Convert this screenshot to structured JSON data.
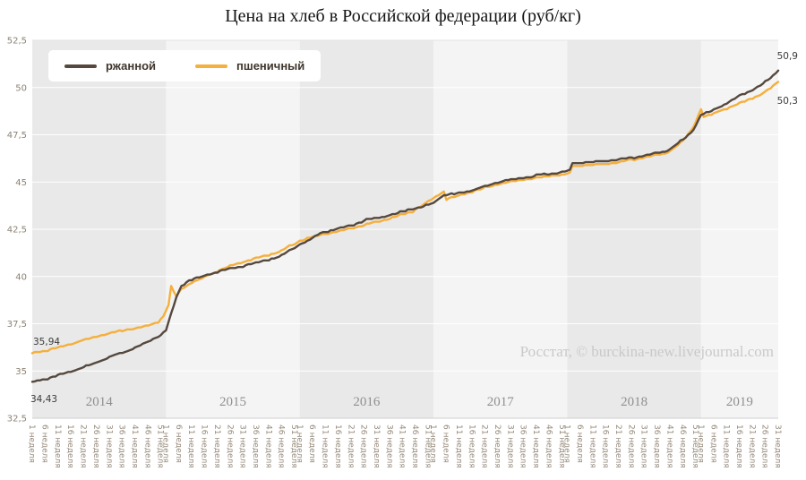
{
  "title": "Цена на хлеб в Российской федерации (руб/кг)",
  "watermark": "Росстат, © burckina-new.livejournal.com",
  "chart_data": {
    "type": "line",
    "title": "Цена на хлеб в Российской федерации (руб/кг)",
    "ylabel": "",
    "xlabel": "",
    "ylim": [
      32.5,
      52.5
    ],
    "y_tick_values": [
      52.5,
      50,
      47.5,
      45,
      42.5,
      40,
      37.5,
      35,
      32.5
    ],
    "y_tick_labels": [
      "52,5",
      "50",
      "47,5",
      "45",
      "42,5",
      "40",
      "37,5",
      "35",
      "32,5"
    ],
    "x_tick_weeks": [
      1,
      6,
      11,
      16,
      21,
      26,
      31,
      36,
      41,
      46,
      51
    ],
    "week_word": "неделя",
    "years": [
      {
        "label": "2014",
        "weeks": 52
      },
      {
        "label": "2015",
        "weeks": 52
      },
      {
        "label": "2016",
        "weeks": 52
      },
      {
        "label": "2017",
        "weeks": 52
      },
      {
        "label": "2018",
        "weeks": 52
      },
      {
        "label": "2019",
        "weeks": 31
      }
    ],
    "band_colors": [
      "#e9e9e9",
      "#f4f4f4"
    ],
    "grid_color": "#ffffff",
    "legend_position": "top-left",
    "series": [
      {
        "name": "ржанной",
        "color": "#55483E",
        "anchors": [
          [
            0,
            34.43
          ],
          [
            6,
            34.6
          ],
          [
            12,
            34.85
          ],
          [
            18,
            35.1
          ],
          [
            24,
            35.4
          ],
          [
            30,
            35.75
          ],
          [
            36,
            36.0
          ],
          [
            42,
            36.35
          ],
          [
            46,
            36.6
          ],
          [
            50,
            36.9
          ],
          [
            52,
            37.15
          ],
          [
            54,
            38.0
          ],
          [
            56,
            38.9
          ],
          [
            58,
            39.5
          ],
          [
            61,
            39.8
          ],
          [
            66,
            40.0
          ],
          [
            72,
            40.25
          ],
          [
            80,
            40.5
          ],
          [
            88,
            40.75
          ],
          [
            96,
            41.05
          ],
          [
            104,
            41.7
          ],
          [
            108,
            41.95
          ],
          [
            112,
            42.3
          ],
          [
            118,
            42.5
          ],
          [
            124,
            42.7
          ],
          [
            130,
            43.0
          ],
          [
            136,
            43.15
          ],
          [
            142,
            43.35
          ],
          [
            148,
            43.6
          ],
          [
            152,
            43.7
          ],
          [
            156,
            43.9
          ],
          [
            158,
            44.15
          ],
          [
            160,
            44.3
          ],
          [
            166,
            44.4
          ],
          [
            172,
            44.6
          ],
          [
            178,
            44.85
          ],
          [
            184,
            45.1
          ],
          [
            190,
            45.2
          ],
          [
            196,
            45.35
          ],
          [
            202,
            45.45
          ],
          [
            209,
            45.6
          ],
          [
            210,
            46.0
          ],
          [
            216,
            46.05
          ],
          [
            222,
            46.1
          ],
          [
            228,
            46.2
          ],
          [
            234,
            46.3
          ],
          [
            240,
            46.45
          ],
          [
            246,
            46.6
          ],
          [
            250,
            46.95
          ],
          [
            253,
            47.25
          ],
          [
            256,
            47.6
          ],
          [
            258,
            48.0
          ],
          [
            260,
            48.6
          ],
          [
            263,
            48.7
          ],
          [
            266,
            48.9
          ],
          [
            269,
            49.1
          ],
          [
            272,
            49.35
          ],
          [
            275,
            49.55
          ],
          [
            278,
            49.75
          ],
          [
            281,
            49.95
          ],
          [
            284,
            50.2
          ],
          [
            287,
            50.5
          ],
          [
            290,
            50.9
          ]
        ]
      },
      {
        "name": "пшеничный",
        "color": "#F5AF3C",
        "anchors": [
          [
            0,
            35.94
          ],
          [
            6,
            36.1
          ],
          [
            12,
            36.3
          ],
          [
            18,
            36.55
          ],
          [
            24,
            36.8
          ],
          [
            30,
            37.0
          ],
          [
            36,
            37.15
          ],
          [
            42,
            37.3
          ],
          [
            46,
            37.45
          ],
          [
            49,
            37.6
          ],
          [
            51,
            37.9
          ],
          [
            53,
            38.5
          ],
          [
            54,
            39.45
          ],
          [
            56,
            38.95
          ],
          [
            58,
            39.35
          ],
          [
            61,
            39.6
          ],
          [
            66,
            39.9
          ],
          [
            72,
            40.3
          ],
          [
            80,
            40.7
          ],
          [
            88,
            41.0
          ],
          [
            96,
            41.3
          ],
          [
            104,
            41.9
          ],
          [
            108,
            42.05
          ],
          [
            112,
            42.2
          ],
          [
            118,
            42.35
          ],
          [
            124,
            42.55
          ],
          [
            130,
            42.75
          ],
          [
            136,
            42.95
          ],
          [
            142,
            43.2
          ],
          [
            148,
            43.45
          ],
          [
            152,
            43.8
          ],
          [
            155,
            44.05
          ],
          [
            158,
            44.35
          ],
          [
            160,
            44.5
          ],
          [
            161,
            44.1
          ],
          [
            165,
            44.25
          ],
          [
            170,
            44.45
          ],
          [
            176,
            44.7
          ],
          [
            182,
            44.9
          ],
          [
            188,
            45.05
          ],
          [
            194,
            45.2
          ],
          [
            200,
            45.3
          ],
          [
            206,
            45.4
          ],
          [
            209,
            45.45
          ],
          [
            210,
            45.85
          ],
          [
            216,
            45.9
          ],
          [
            222,
            45.95
          ],
          [
            228,
            46.05
          ],
          [
            234,
            46.2
          ],
          [
            240,
            46.35
          ],
          [
            246,
            46.5
          ],
          [
            250,
            46.85
          ],
          [
            253,
            47.2
          ],
          [
            256,
            47.7
          ],
          [
            258,
            48.2
          ],
          [
            260,
            48.9
          ],
          [
            261,
            48.45
          ],
          [
            264,
            48.55
          ],
          [
            266,
            48.7
          ],
          [
            269,
            48.85
          ],
          [
            272,
            49.0
          ],
          [
            275,
            49.15
          ],
          [
            278,
            49.35
          ],
          [
            281,
            49.5
          ],
          [
            284,
            49.7
          ],
          [
            287,
            49.95
          ],
          [
            290,
            50.3
          ]
        ]
      }
    ],
    "annotations": {
      "wheat_start": "35,94",
      "rye_start": "34,43",
      "rye_end": "50,9",
      "wheat_end": "50,3"
    }
  }
}
